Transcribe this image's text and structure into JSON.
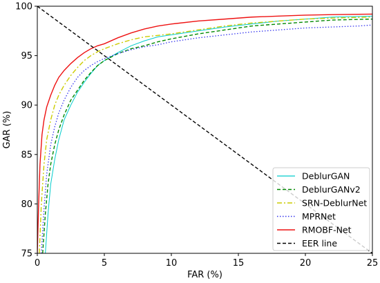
{
  "chart_data": {
    "type": "line",
    "title": "",
    "xlabel": "FAR (%)",
    "ylabel": "GAR (%)",
    "xlim": [
      0,
      25
    ],
    "ylim": [
      75,
      100
    ],
    "xticks": [
      0,
      5,
      10,
      15,
      20,
      25
    ],
    "yticks": [
      75,
      80,
      85,
      90,
      95,
      100
    ],
    "grid": false,
    "legend_position": "bottom-right",
    "series": [
      {
        "name": "DeblurGAN",
        "color": "#00cccc",
        "style": "solid-thin",
        "x": [
          0.6,
          0.8,
          1.0,
          1.3,
          1.6,
          2.0,
          2.5,
          3.0,
          3.5,
          4.0,
          4.5,
          5.0,
          6.0,
          7.0,
          8.0,
          9.0,
          10.0,
          12.0,
          14.0,
          16.0,
          18.0,
          20.0,
          22.0,
          25.0
        ],
        "y": [
          75.0,
          79.0,
          82.0,
          84.5,
          86.5,
          88.5,
          90.0,
          91.3,
          92.3,
          93.2,
          94.0,
          94.5,
          95.3,
          96.0,
          96.5,
          96.9,
          97.1,
          97.5,
          97.9,
          98.2,
          98.5,
          98.7,
          98.9,
          99.0
        ]
      },
      {
        "name": "DeblurGANv2",
        "color": "#008800",
        "style": "dashed",
        "x": [
          0.4,
          0.6,
          0.8,
          1.0,
          1.3,
          1.6,
          2.0,
          2.5,
          3.0,
          3.5,
          4.0,
          4.5,
          5.0,
          6.0,
          7.0,
          8.0,
          9.0,
          10.0,
          12.0,
          14.0,
          16.0,
          18.0,
          20.0,
          22.0,
          25.0
        ],
        "y": [
          75.0,
          79.0,
          82.0,
          84.0,
          86.0,
          87.5,
          89.0,
          90.5,
          91.5,
          92.5,
          93.3,
          94.0,
          94.5,
          95.2,
          95.7,
          96.0,
          96.4,
          96.7,
          97.2,
          97.6,
          98.0,
          98.2,
          98.4,
          98.6,
          98.7
        ]
      },
      {
        "name": "SRN-DeblurNet",
        "color": "#cccc00",
        "style": "dashdot",
        "x": [
          0.15,
          0.3,
          0.5,
          0.7,
          1.0,
          1.3,
          1.6,
          2.0,
          2.5,
          3.0,
          3.5,
          4.0,
          4.5,
          5.0,
          6.0,
          7.0,
          8.0,
          10.0,
          12.0,
          14.0,
          16.0,
          18.0,
          20.0,
          22.0,
          25.0
        ],
        "y": [
          75.0,
          80.0,
          84.0,
          86.5,
          88.5,
          90.0,
          91.0,
          92.0,
          93.0,
          93.8,
          94.5,
          95.0,
          95.4,
          95.7,
          96.2,
          96.6,
          96.9,
          97.2,
          97.6,
          98.0,
          98.3,
          98.5,
          98.7,
          98.8,
          98.9
        ]
      },
      {
        "name": "MPRNet",
        "color": "#3333ee",
        "style": "dotted",
        "x": [
          0.3,
          0.5,
          0.7,
          1.0,
          1.3,
          1.6,
          2.0,
          2.5,
          3.0,
          3.5,
          4.0,
          4.5,
          5.0,
          6.0,
          7.0,
          8.0,
          9.0,
          10.0,
          12.0,
          14.0,
          16.0,
          18.0,
          20.0,
          22.0,
          24.0,
          25.0
        ],
        "y": [
          75.0,
          79.5,
          83.0,
          86.0,
          87.8,
          89.2,
          90.5,
          91.8,
          92.8,
          93.5,
          94.0,
          94.4,
          94.7,
          95.2,
          95.6,
          95.9,
          96.1,
          96.4,
          96.8,
          97.1,
          97.4,
          97.6,
          97.8,
          97.9,
          98.0,
          98.1
        ]
      },
      {
        "name": "RMOBF-Net",
        "color": "#ee1111",
        "style": "solid",
        "x": [
          0.0,
          0.1,
          0.2,
          0.35,
          0.5,
          0.7,
          1.0,
          1.3,
          1.6,
          2.0,
          2.5,
          3.0,
          3.5,
          4.0,
          4.5,
          5.0,
          6.0,
          7.0,
          8.0,
          9.0,
          10.0,
          12.0,
          14.0,
          16.0,
          18.0,
          20.0,
          22.0,
          25.0
        ],
        "y": [
          75.0,
          80.0,
          84.0,
          87.0,
          88.5,
          89.8,
          91.0,
          92.0,
          92.8,
          93.5,
          94.2,
          94.8,
          95.3,
          95.7,
          96.0,
          96.2,
          96.8,
          97.3,
          97.7,
          98.0,
          98.2,
          98.5,
          98.7,
          98.9,
          99.0,
          99.1,
          99.15,
          99.2
        ]
      },
      {
        "name": "EER line",
        "color": "#000000",
        "style": "dashed",
        "x": [
          0,
          25
        ],
        "y": [
          100,
          75
        ]
      }
    ]
  }
}
